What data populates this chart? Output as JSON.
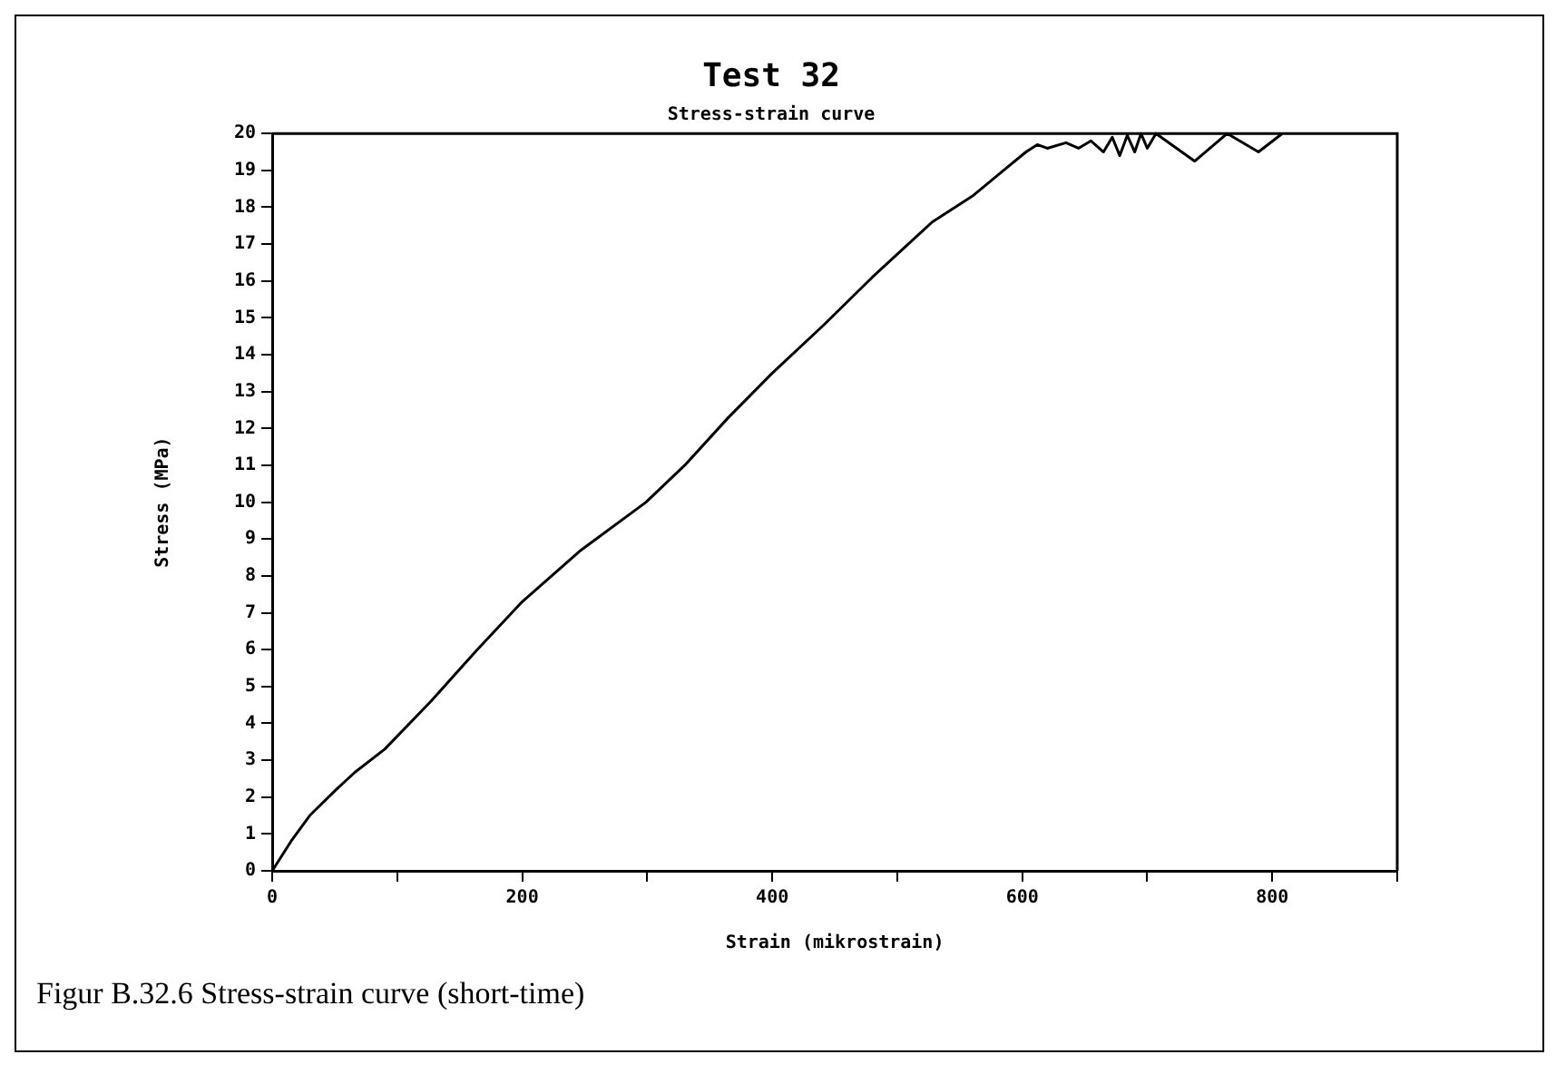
{
  "chart_data": {
    "type": "line",
    "title": "Test 32",
    "subtitle": "Stress-strain curve",
    "xlabel": "Strain (mikrostrain)",
    "ylabel": "Stress (MPa)",
    "annotations": [
      "Figur B.32.6 Stress-strain curve (short-time)"
    ],
    "x": [
      0,
      15,
      30,
      51,
      66,
      90,
      127,
      164,
      200,
      247,
      299,
      330,
      365,
      400,
      441,
      480,
      528,
      560,
      585,
      603,
      612,
      620,
      635,
      645,
      655,
      665,
      672,
      678,
      684,
      690,
      695,
      700,
      707,
      738,
      764,
      789,
      808
    ],
    "series": [
      {
        "color": "#000000",
        "values": [
          0,
          0.8,
          1.5,
          2.2,
          2.67,
          3.3,
          4.6,
          6,
          7.3,
          8.7,
          10,
          11,
          12.3,
          13.5,
          14.8,
          16.1,
          17.6,
          18.3,
          19,
          19.5,
          19.7,
          19.6,
          19.75,
          19.6,
          19.8,
          19.5,
          19.9,
          19.4,
          19.95,
          19.5,
          20,
          19.6,
          20,
          19.25,
          20,
          19.5,
          20
        ]
      }
    ],
    "xlim": [
      0,
      900
    ],
    "ylim": [
      0,
      20
    ],
    "xticks": [
      0,
      {
        "value": 100,
        "label": null
      },
      200,
      {
        "value": 300,
        "label": null
      },
      400,
      {
        "value": 500,
        "label": null
      },
      600,
      {
        "value": 700,
        "label": null
      },
      800,
      {
        "value": 900,
        "label": null
      }
    ],
    "yticks": [
      0,
      1,
      2,
      3,
      4,
      5,
      6,
      7,
      8,
      9,
      10,
      11,
      12,
      13,
      14,
      15,
      16,
      17,
      18,
      19,
      20
    ],
    "grid": false,
    "legend": false,
    "marker": "none",
    "line_style": "solid"
  }
}
